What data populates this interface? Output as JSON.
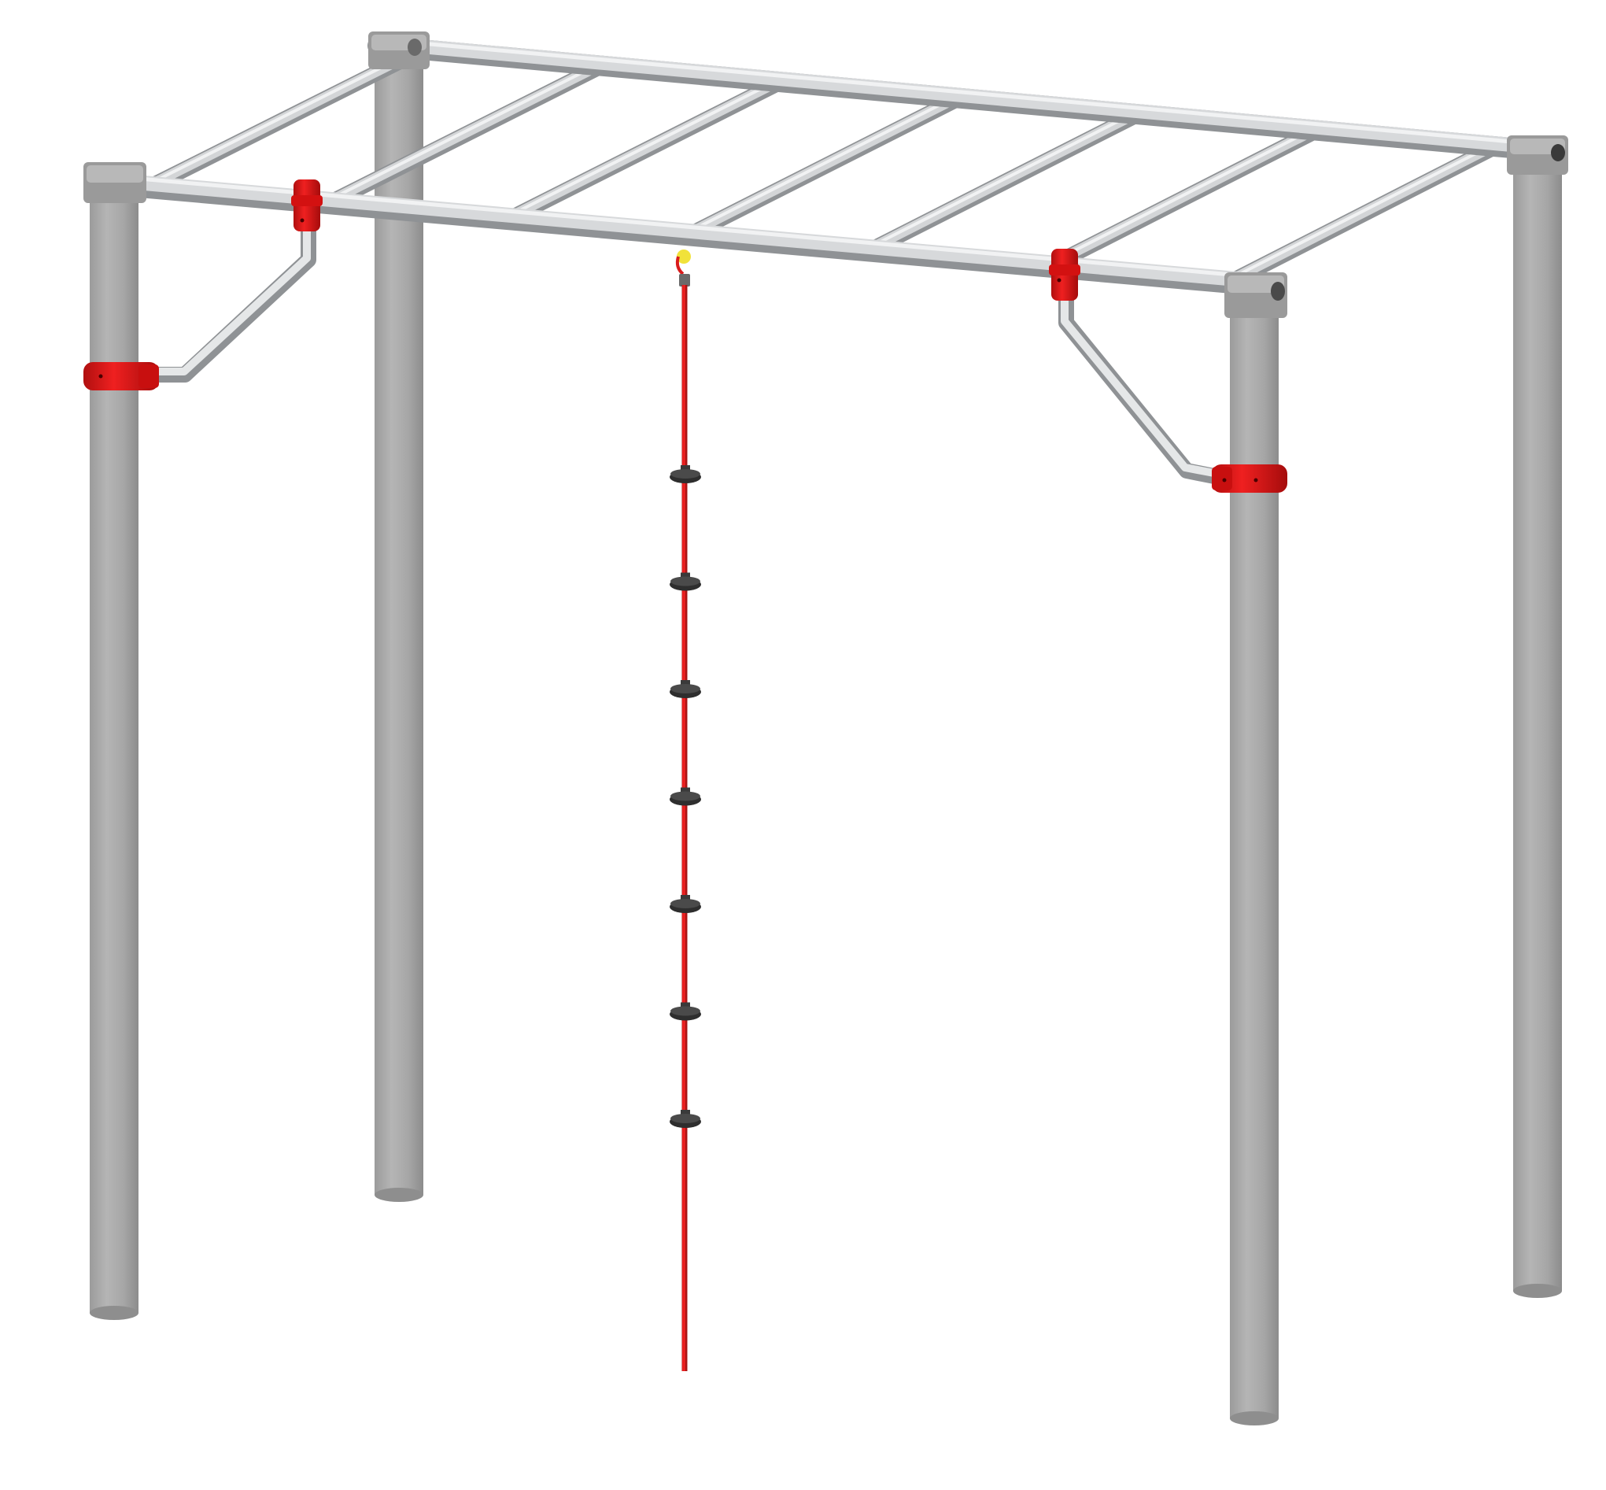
{
  "scene": {
    "subject": "monkey-bars-frame-with-knotted-climbing-rope",
    "colors": {
      "background": "#ffffff",
      "post": "#a9a9a9",
      "post_shadow": "#8e8e8e",
      "post_highlight": "#c2c2c2",
      "bar": "#c9cbcd",
      "bar_highlight": "#eceeef",
      "bar_shadow": "#9fa2a5",
      "clamp": "#e31414",
      "clamp_dark": "#a60c0c",
      "rope": "#d91c1c",
      "rope_knot": "#3a3a3a",
      "rope_hook": "#f1e23a"
    },
    "rung_count": 7,
    "rope_knot_count": 7,
    "icons": [
      "climbing-frame-icon",
      "rope-icon",
      "clamp-icon"
    ]
  }
}
